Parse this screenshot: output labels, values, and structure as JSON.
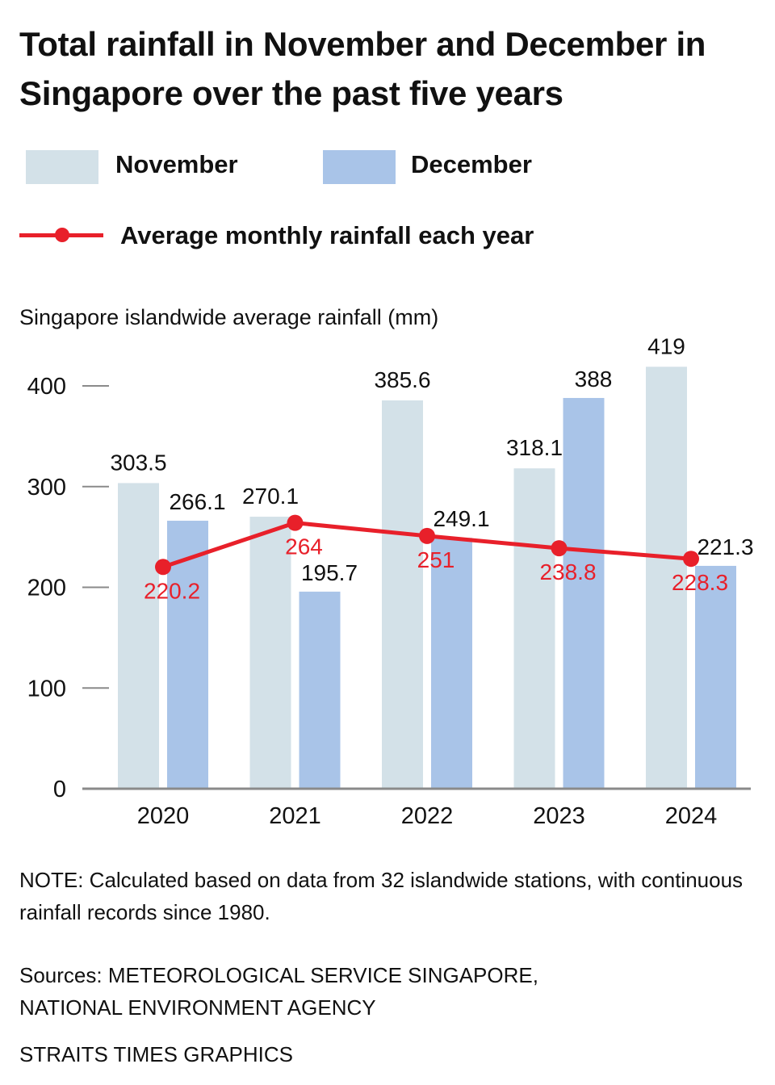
{
  "title": "Total rainfall in November and December in Singapore over the past five years",
  "legend": {
    "november": "November",
    "december": "December",
    "average": "Average monthly rainfall each year"
  },
  "colors": {
    "november": "#d3e1e8",
    "december": "#a9c4e8",
    "average": "#e8202a",
    "axis": "#8a8a8a",
    "text": "#111111"
  },
  "note": "NOTE: Calculated based on data from 32 islandwide stations, with continuous rainfall records since 1980.",
  "sources": {
    "line1": "Sources: METEOROLOGICAL SERVICE SINGAPORE,",
    "line2": "NATIONAL ENVIRONMENT AGENCY"
  },
  "credit": "STRAITS TIMES GRAPHICS",
  "chart_data": {
    "type": "bar",
    "ylabel": "Singapore islandwide average rainfall (mm)",
    "ylim": [
      0,
      400
    ],
    "yticks": [
      "0",
      "100",
      "200",
      "300",
      "400"
    ],
    "categories": [
      "2020",
      "2021",
      "2022",
      "2023",
      "2024"
    ],
    "series": [
      {
        "name": "November",
        "values": [
          303.5,
          270.1,
          385.6,
          318.1,
          419
        ],
        "labels": [
          "303.5",
          "270.1",
          "385.6",
          "318.1",
          "419"
        ]
      },
      {
        "name": "December",
        "values": [
          266.1,
          195.7,
          249.1,
          388,
          221.3
        ],
        "labels": [
          "266.1",
          "195.7",
          "249.1",
          "388",
          "221.3"
        ]
      }
    ],
    "line": {
      "name": "Average monthly rainfall each year",
      "values": [
        220.2,
        264,
        251,
        238.8,
        228.3
      ],
      "labels": [
        "220.2",
        "264",
        "251",
        "238.8",
        "228.3"
      ]
    }
  }
}
